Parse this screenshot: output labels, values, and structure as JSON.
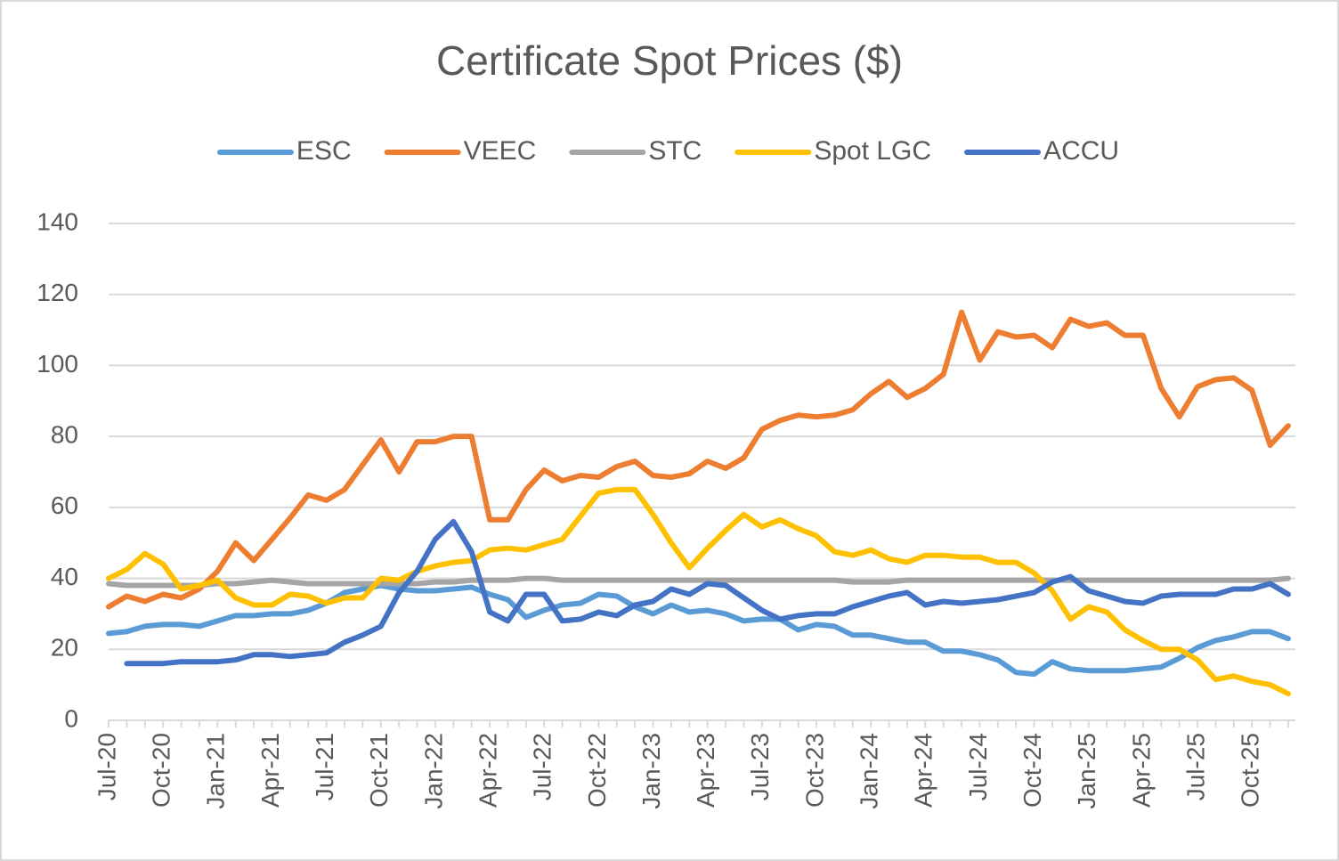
{
  "chart_data": {
    "type": "line",
    "title": "Certificate Spot Prices ($)",
    "categories": [
      "Jul-20",
      null,
      null,
      "Oct-20",
      null,
      null,
      "Jan-21",
      null,
      null,
      "Apr-21",
      null,
      null,
      "Jul-21",
      null,
      null,
      "Oct-21",
      null,
      null,
      "Jan-22",
      null,
      null,
      "Apr-22",
      null,
      null,
      "Jul-22",
      null,
      null,
      "Oct-22",
      null,
      null,
      "Jan-23",
      null,
      null,
      "Apr-23",
      null,
      null,
      "Jul-23",
      null,
      null,
      "Oct-23",
      null,
      null,
      "Jan-24",
      null,
      null,
      "Apr-24",
      null,
      null,
      "Jul-24",
      null,
      null,
      "Oct-24",
      null,
      null,
      "Jan-25",
      null,
      null,
      "Apr-25",
      null,
      null,
      "Jul-25",
      null,
      null,
      "Oct-25",
      null,
      null
    ],
    "series": [
      {
        "name": "ESC",
        "color": "#5b9bd5",
        "values": [
          24.5,
          25,
          26.5,
          27,
          27,
          26.5,
          28,
          29.5,
          29.5,
          30,
          30,
          31,
          33,
          36,
          37,
          38,
          37,
          36.5,
          36.5,
          37,
          37.5,
          35.5,
          34,
          29,
          31,
          32.5,
          33,
          35.5,
          35,
          32,
          30,
          32.5,
          30.5,
          31,
          30,
          28,
          28.5,
          28.5,
          25.5,
          27,
          26.5,
          24,
          24,
          23,
          22,
          22,
          19.5,
          19.5,
          18.5,
          17,
          13.5,
          13,
          16.5,
          14.5,
          14,
          14,
          14,
          14.5,
          15,
          17.5,
          20.5,
          22.5,
          23.5,
          25,
          25,
          23
        ]
      },
      {
        "name": "VEEC",
        "color": "#ed7d31",
        "values": [
          32,
          35,
          33.5,
          35.5,
          34.5,
          37,
          42,
          50,
          45,
          51,
          57,
          63.5,
          62,
          65,
          72,
          79,
          70,
          78.5,
          78.5,
          80,
          80,
          56.5,
          56.5,
          65,
          70.5,
          67.5,
          69,
          68.5,
          71.5,
          73,
          69,
          68.5,
          69.5,
          73,
          71,
          74,
          82,
          84.5,
          86,
          85.5,
          86,
          87.5,
          92,
          95.5,
          91,
          93.5,
          97.5,
          115,
          101.5,
          109.5,
          108,
          108.5,
          105,
          113,
          111,
          112,
          108.5,
          108.5,
          93.5,
          85.5,
          94,
          96,
          96.5,
          93,
          77.5,
          83
        ]
      },
      {
        "name": "STC",
        "color": "#a5a5a5",
        "values": [
          38.5,
          38,
          38,
          38,
          38,
          38,
          38.5,
          38.5,
          39,
          39.5,
          39,
          38.5,
          38.5,
          38.5,
          38.5,
          38.5,
          38.5,
          38.5,
          39,
          39,
          39.5,
          39.5,
          39.5,
          40,
          40,
          39.5,
          39.5,
          39.5,
          39.5,
          39.5,
          39.5,
          39.5,
          39.5,
          39.5,
          39.5,
          39.5,
          39.5,
          39.5,
          39.5,
          39.5,
          39.5,
          39,
          39,
          39,
          39.5,
          39.5,
          39.5,
          39.5,
          39.5,
          39.5,
          39.5,
          39.5,
          39.5,
          39.5,
          39.5,
          39.5,
          39.5,
          39.5,
          39.5,
          39.5,
          39.5,
          39.5,
          39.5,
          39.5,
          39.5,
          40
        ]
      },
      {
        "name": "Spot LGC",
        "color": "#ffc000",
        "values": [
          40,
          42.5,
          47,
          44,
          37,
          38,
          39.5,
          34.5,
          32.5,
          32.5,
          35.5,
          35,
          33,
          34.5,
          34.5,
          40,
          39.5,
          42,
          43.5,
          44.5,
          45,
          48,
          48.5,
          48,
          49.5,
          51,
          57.5,
          64,
          65,
          65,
          58,
          50,
          43,
          48.5,
          53.5,
          58,
          54.5,
          56.5,
          54,
          52,
          47.5,
          46.5,
          48,
          45.5,
          44.5,
          46.5,
          46.5,
          46,
          46,
          44.5,
          44.5,
          41.5,
          36.5,
          28.5,
          32,
          30.5,
          25.5,
          22.5,
          20,
          20,
          17,
          11.5,
          12.5,
          11,
          10,
          7.5
        ]
      },
      {
        "name": "ACCU",
        "color": "#4472c4",
        "values": [
          null,
          16,
          16,
          16,
          16.5,
          16.5,
          16.5,
          17,
          18.5,
          18.5,
          18,
          18.5,
          19,
          22,
          24,
          26.5,
          36,
          42,
          51,
          56,
          47.5,
          30.5,
          28,
          35.5,
          35.5,
          28,
          28.5,
          30.5,
          29.5,
          32.5,
          33.5,
          37,
          35.5,
          38.5,
          38,
          34.5,
          31,
          28.5,
          29.5,
          30,
          30,
          32,
          33.5,
          35,
          36,
          32.5,
          33.5,
          33,
          33.5,
          34,
          35,
          36,
          39,
          40.5,
          36.5,
          35,
          33.5,
          33,
          35,
          35.5,
          35.5,
          35.5,
          37,
          37,
          38.5,
          35.5
        ]
      }
    ],
    "ylim": [
      0,
      140
    ],
    "yticks": [
      0,
      20,
      40,
      60,
      80,
      100,
      120,
      140
    ],
    "grid": true,
    "legend": "top"
  }
}
